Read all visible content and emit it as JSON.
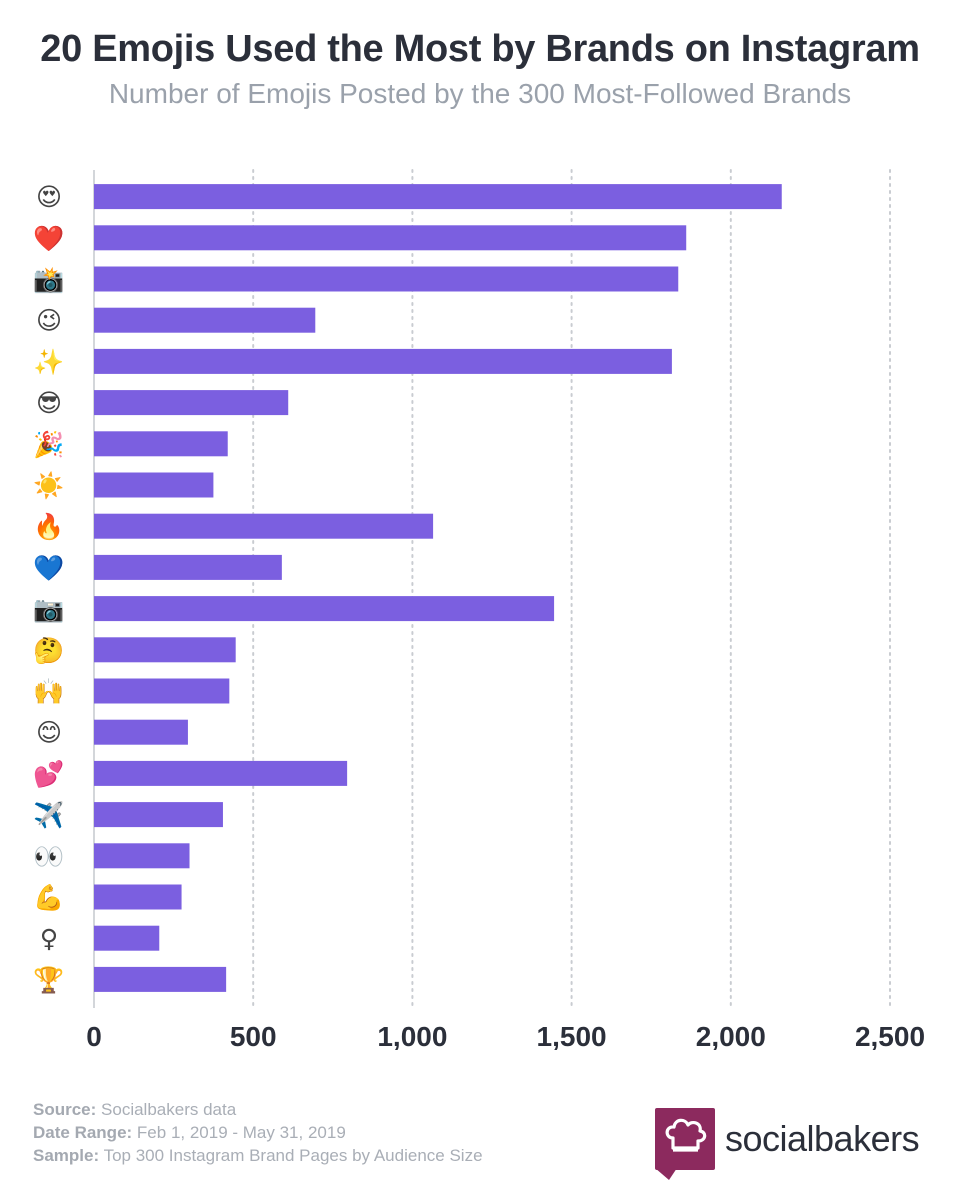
{
  "chart_data": {
    "type": "bar",
    "orientation": "horizontal",
    "title": "20 Emojis Used the Most by Brands on Instagram",
    "subtitle": "Number of Emojis Posted by the 300 Most-Followed Brands",
    "categories": [
      "😍",
      "❤️",
      "📸",
      "😉",
      "✨",
      "😎",
      "🎉",
      "☀️",
      "🔥",
      "💙",
      "📷",
      "🤔",
      "🙌",
      "😊",
      "💕",
      "✈️",
      "👀",
      "💪",
      "♀",
      "🏆"
    ],
    "values": [
      2160,
      1860,
      1835,
      695,
      1815,
      610,
      420,
      375,
      1065,
      590,
      1445,
      445,
      425,
      295,
      795,
      405,
      300,
      275,
      205,
      415
    ],
    "x_ticks": [
      "0",
      "500",
      "1,000",
      "1,500",
      "2,000",
      "2,500"
    ],
    "xlim": [
      0,
      2500
    ],
    "grid": true,
    "bar_color": "#7b5fe0"
  },
  "footer": {
    "source_label": "Source:",
    "source_value": "Socialbakers data",
    "date_label": "Date Range:",
    "date_value": "Feb 1, 2019 - May 31, 2019",
    "sample_label": "Sample:",
    "sample_value": "Top 300 Instagram Brand Pages by Audience Size"
  },
  "logo": {
    "text": "socialbakers",
    "icon": "chef-hat-icon",
    "color": "#8c2a5e"
  }
}
